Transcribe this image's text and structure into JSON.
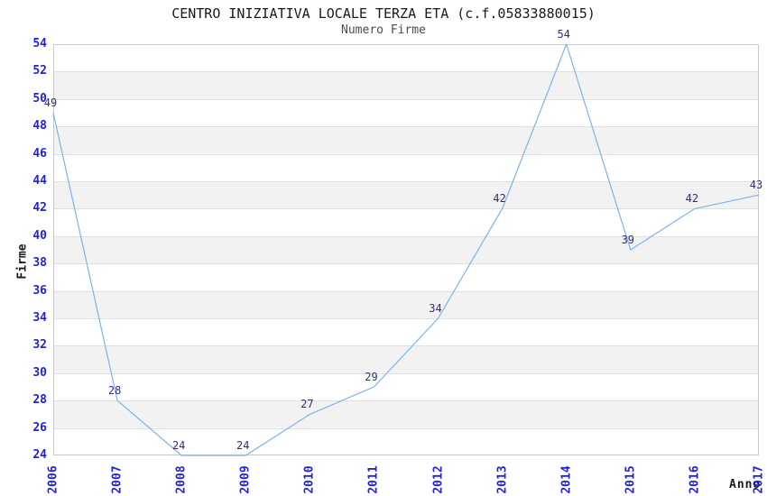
{
  "title": "CENTRO INIZIATIVA LOCALE TERZA ETA (c.f.05833880015)",
  "subtitle": "Numero Firme",
  "chart_data": {
    "type": "line",
    "title": "CENTRO INIZIATIVA LOCALE TERZA ETA (c.f.05833880015)",
    "subtitle": "Numero Firme",
    "xlabel": "Anno",
    "ylabel": "Firme",
    "categories": [
      "2006",
      "2007",
      "2008",
      "2009",
      "2010",
      "2011",
      "2012",
      "2013",
      "2014",
      "2015",
      "2016",
      "2017"
    ],
    "values": [
      49,
      28,
      24,
      24,
      27,
      29,
      34,
      42,
      54,
      39,
      42,
      43
    ],
    "ylim": [
      24,
      54
    ],
    "ytick_step": 2,
    "grid": "horizontal gridlines with alternating gray bands every 2 units",
    "legend": "none",
    "point_labels_shown": true,
    "colors": {
      "line": "#7fb3e8",
      "tick_label": "#2222dd",
      "point_label": "#2e2e82",
      "band": "#f2f2f2",
      "gridline": "#e0e0e0",
      "plot_border": "#c9c9c9",
      "title": "#1a1a1a",
      "subtitle": "#4d4d4d",
      "axis_title": "#1a1a1a",
      "background": "#ffffff"
    }
  }
}
